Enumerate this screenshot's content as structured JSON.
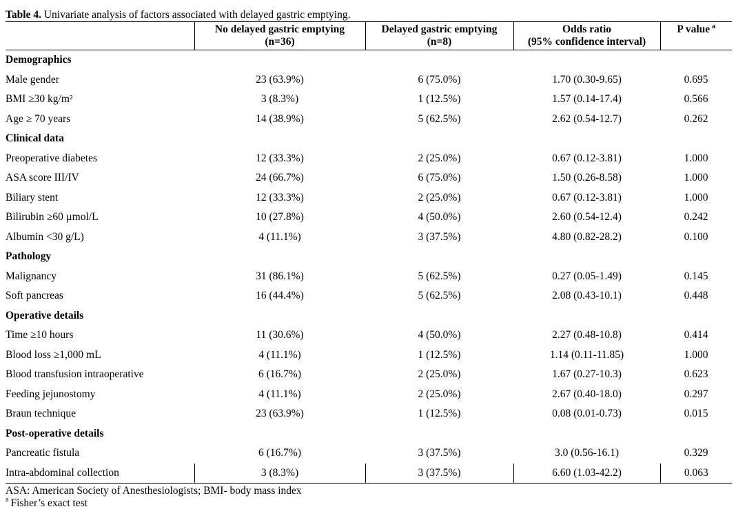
{
  "page": {
    "background": "#ffffff",
    "text_color": "#000000"
  },
  "title": {
    "label": "Table 4.",
    "caption": " Univariate analysis of factors associated with delayed gastric emptying."
  },
  "table": {
    "headers": [
      {
        "line1": "No delayed gastric emptying",
        "line2": "(n=36)"
      },
      {
        "line1": "Delayed gastric emptying",
        "line2": "(n=8)"
      },
      {
        "line1": "Odds ratio",
        "line2": "(95% confidence interval)"
      },
      {
        "line1": "P value",
        "sup": "a"
      }
    ],
    "rows": [
      {
        "section": "Demographics"
      },
      {
        "cells": [
          "Male gender",
          "23 (63.9%)",
          "6 (75.0%)",
          "1.70 (0.30-9.65)",
          "0.695"
        ]
      },
      {
        "cells": [
          "BMI ≥30 kg/m²",
          "3 (8.3%)",
          "1 (12.5%)",
          "1.57 (0.14-17.4)",
          "0.566"
        ]
      },
      {
        "cells": [
          "Age ≥ 70 years",
          "14 (38.9%)",
          "5 (62.5%)",
          "2.62 (0.54-12.7)",
          "0.262"
        ]
      },
      {
        "section": "Clinical data"
      },
      {
        "cells": [
          "Preoperative diabetes",
          "12 (33.3%)",
          "2 (25.0%)",
          "0.67 (0.12-3.81)",
          "1.000"
        ]
      },
      {
        "cells": [
          "ASA score III/IV",
          "24 (66.7%)",
          "6 (75.0%)",
          "1.50 (0.26-8.58)",
          "1.000"
        ]
      },
      {
        "cells": [
          "Biliary stent",
          "12 (33.3%)",
          "2 (25.0%)",
          "0.67 (0.12-3.81)",
          "1.000"
        ]
      },
      {
        "cells": [
          "Bilirubin ≥60 µmol/L",
          "10 (27.8%)",
          "4 (50.0%)",
          "2.60 (0.54-12.4)",
          "0.242"
        ]
      },
      {
        "cells": [
          "Albumin <30 g/L)",
          "4 (11.1%)",
          "3 (37.5%)",
          "4.80 (0.82-28.2)",
          "0.100"
        ]
      },
      {
        "section": "Pathology"
      },
      {
        "cells": [
          "Malignancy",
          "31 (86.1%)",
          "5 (62.5%)",
          "0.27 (0.05-1.49)",
          "0.145"
        ]
      },
      {
        "cells": [
          "Soft pancreas",
          "16 (44.4%)",
          "5 (62.5%)",
          "2.08 (0.43-10.1)",
          "0.448"
        ]
      },
      {
        "section": "Operative details"
      },
      {
        "cells": [
          "Time ≥10 hours",
          "11 (30.6%)",
          "4 (50.0%)",
          "2.27 (0.48-10.8)",
          "0.414"
        ]
      },
      {
        "cells": [
          "Blood loss ≥1,000 mL",
          "4 (11.1%)",
          "1 (12.5%)",
          "1.14 (0.11-11.85)",
          "1.000"
        ]
      },
      {
        "cells": [
          "Blood transfusion intraoperative",
          "6 (16.7%)",
          "2 (25.0%)",
          "1.67 (0.27-10.3)",
          "0.623"
        ]
      },
      {
        "cells": [
          "Feeding jejunostomy",
          "4 (11.1%)",
          "2 (25.0%)",
          "2.67 (0.40-18.0)",
          "0.297"
        ]
      },
      {
        "cells": [
          "Braun technique",
          "23 (63.9%)",
          "1 (12.5%)",
          "0.08 (0.01-0.73)",
          "0.015"
        ]
      },
      {
        "section": "Post-operative details"
      },
      {
        "cells": [
          "Pancreatic fistula",
          "6 (16.7%)",
          "3 (37.5%)",
          "3.0 (0.56-16.1)",
          "0.329"
        ]
      },
      {
        "cells": [
          "Intra-abdominal collection",
          "3 (8.3%)",
          "3 (37.5%)",
          "6.60 (1.03-42.2)",
          "0.063"
        ]
      }
    ]
  },
  "footnotes": {
    "abbreviations": "ASA: American Society of Anesthesiologists; BMI- body mass index",
    "fisher_sup": "a",
    "fisher_text": "Fisher’s exact test"
  }
}
